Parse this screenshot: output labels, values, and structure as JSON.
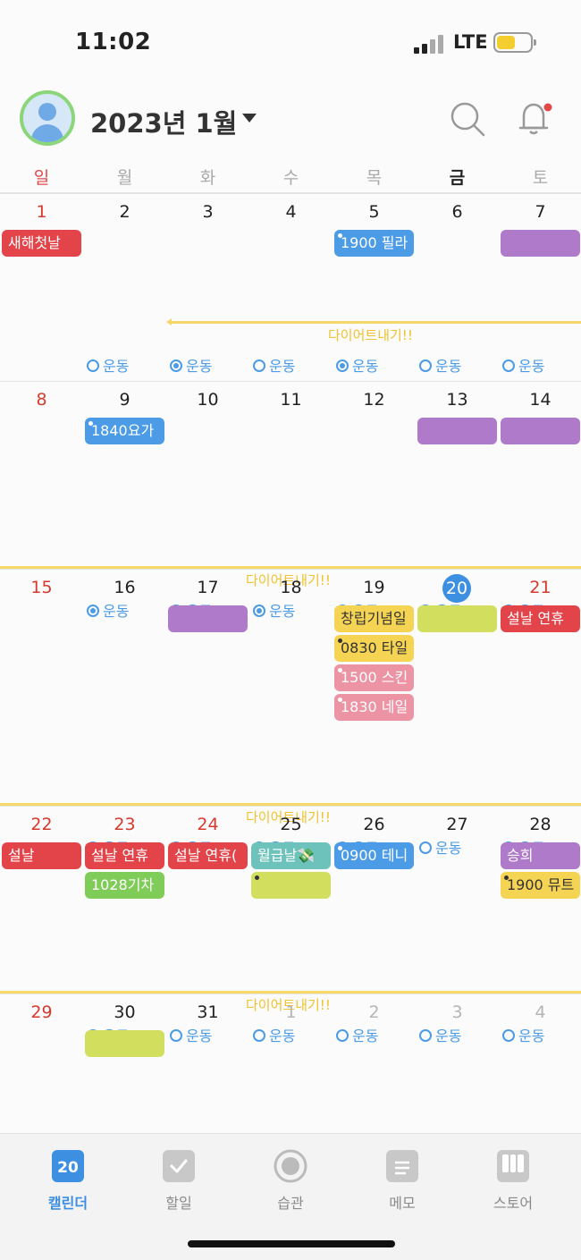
{
  "status_bar": {
    "time": "11:02",
    "network": "LTE"
  },
  "header": {
    "month_title": "2023년 1월"
  },
  "weekdays": [
    "일",
    "월",
    "화",
    "수",
    "목",
    "금",
    "토"
  ],
  "weeks": [
    {
      "days": [
        "1",
        "2",
        "3",
        "4",
        "5",
        "6",
        "7"
      ],
      "events": [
        {
          "col": 0,
          "row": 0,
          "span": 1,
          "text": "새해첫날",
          "color": "red",
          "dot": false
        },
        {
          "col": 4,
          "row": 0,
          "span": 1,
          "text": "1900 필라",
          "color": "blue",
          "dot": true
        },
        {
          "col": 6,
          "row": 0,
          "span": 1,
          "text": "",
          "color": "purple",
          "dot": false
        }
      ],
      "banner": {
        "text": "다이어트내기!!",
        "start_col": 2,
        "arrow": true
      },
      "habits": [
        false,
        true,
        false,
        true,
        false,
        false
      ]
    },
    {
      "days": [
        "8",
        "9",
        "10",
        "11",
        "12",
        "13",
        "14"
      ],
      "events": [
        {
          "col": 1,
          "row": 0,
          "span": 1,
          "text": "1840요가",
          "color": "blue",
          "dot": true
        },
        {
          "col": 5,
          "row": 0,
          "span": 1,
          "text": "",
          "color": "purple",
          "dot": false
        },
        {
          "col": 6,
          "row": 0,
          "span": 1,
          "text": "",
          "color": "purple",
          "dot": false
        }
      ],
      "banner": {
        "text": "다이어트내기!!",
        "start_col": 0,
        "arrow": false
      },
      "habits": [
        true,
        true,
        true,
        true,
        false,
        true
      ]
    },
    {
      "days": [
        "15",
        "16",
        "17",
        "18",
        "19",
        "20",
        "21"
      ],
      "events": [
        {
          "col": 2,
          "row": 0,
          "span": 1,
          "text": "",
          "color": "purple",
          "dot": false
        },
        {
          "col": 4,
          "row": 0,
          "span": 1,
          "text": "창립기념일",
          "color": "yellow",
          "dot": false
        },
        {
          "col": 5,
          "row": 0,
          "span": 1,
          "text": "",
          "color": "lime",
          "dot": false
        },
        {
          "col": 6,
          "row": 0,
          "span": 1,
          "text": "설날 연휴",
          "color": "red",
          "dot": false
        },
        {
          "col": 4,
          "row": 1,
          "span": 1,
          "text": "0830 타일",
          "color": "yellow",
          "dot": true
        },
        {
          "col": 4,
          "row": 2,
          "span": 1,
          "text": "1500 스킨",
          "color": "pink",
          "dot": true
        },
        {
          "col": 4,
          "row": 3,
          "span": 1,
          "text": "1830 네일",
          "color": "pink",
          "dot": true
        }
      ],
      "banner": {
        "text": "다이어트내기!!",
        "start_col": 0,
        "arrow": false
      },
      "habits": [
        false,
        true,
        false,
        false,
        false,
        false
      ]
    },
    {
      "days": [
        "22",
        "23",
        "24",
        "25",
        "26",
        "27",
        "28"
      ],
      "events": [
        {
          "col": 0,
          "row": 0,
          "span": 1,
          "text": "설날",
          "color": "red",
          "dot": false
        },
        {
          "col": 1,
          "row": 0,
          "span": 1,
          "text": "설날 연휴",
          "color": "red",
          "dot": false
        },
        {
          "col": 2,
          "row": 0,
          "span": 1,
          "text": "설날 연휴(",
          "color": "red",
          "dot": false
        },
        {
          "col": 3,
          "row": 0,
          "span": 1,
          "text": "월급날💸",
          "color": "teal",
          "dot": false
        },
        {
          "col": 4,
          "row": 0,
          "span": 1,
          "text": "0900 테니",
          "color": "blue",
          "dot": true
        },
        {
          "col": 6,
          "row": 0,
          "span": 1,
          "text": "승희",
          "color": "purple",
          "dot": false
        },
        {
          "col": 1,
          "row": 1,
          "span": 1,
          "text": "1028기차",
          "color": "green",
          "dot": false
        },
        {
          "col": 3,
          "row": 1,
          "span": 1,
          "text": "",
          "color": "lime",
          "dot": true
        },
        {
          "col": 6,
          "row": 1,
          "span": 1,
          "text": "1900 뮤트",
          "color": "yellow",
          "dot": true
        }
      ],
      "banner": {
        "text": "다이어트내기!!",
        "start_col": 0,
        "arrow": false
      },
      "habits": [
        false,
        false,
        false,
        false,
        false,
        false
      ]
    },
    {
      "days": [
        "29",
        "30",
        "31",
        "1",
        "2",
        "3",
        "4"
      ],
      "events": [
        {
          "col": 1,
          "row": 0,
          "span": 1,
          "text": "",
          "color": "lime",
          "dot": false
        }
      ],
      "banner": {
        "text": "다이어트내기!!",
        "start_col": 0,
        "arrow": false
      },
      "habits": null
    }
  ],
  "habit_label": "운동",
  "today_day": "20",
  "tabs": [
    {
      "label": "캘린더",
      "badge": "20",
      "active": true,
      "icon": "calendar-icon"
    },
    {
      "label": "할일",
      "active": false,
      "icon": "checkbox-icon"
    },
    {
      "label": "습관",
      "active": false,
      "icon": "habit-circle-icon"
    },
    {
      "label": "메모",
      "active": false,
      "icon": "memo-icon"
    },
    {
      "label": "스토어",
      "active": false,
      "icon": "store-icon"
    }
  ],
  "colors": {
    "red": "#e2444a",
    "blue": "#4b9be6",
    "purple": "#b07acb",
    "yellow": "#f6d453",
    "lime": "#d2df5e",
    "pink": "#ec94a4",
    "green": "#80cc59",
    "teal": "#6dc3bb",
    "accent": "#3d8fe2"
  }
}
